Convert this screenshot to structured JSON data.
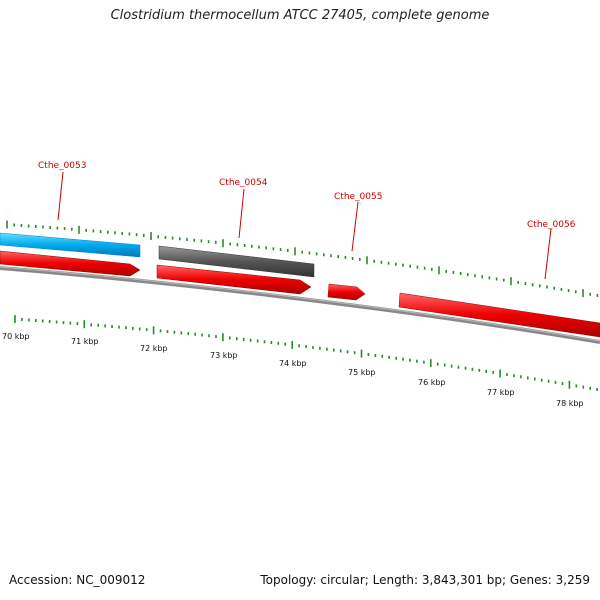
{
  "title": "Clostridium thermocellum ATCC 27405, complete genome",
  "footer": {
    "accession": "Accession: NC_009012",
    "summary": "Topology: circular; Length: 3,843,301 bp; Genes: 3,259"
  },
  "colors": {
    "forward_cds": "#00aaee",
    "reverse_cds_grey": "#555555",
    "reverse_cds_red": "#dd0000",
    "backbone": "#888888",
    "tick": "#2a8a2a",
    "locus_label": "#cc0000"
  },
  "loci": [
    {
      "name": "Cthe_0053",
      "strand": "forward",
      "color": "blue"
    },
    {
      "name": "Cthe_0054",
      "strand": "forward",
      "color": "grey"
    },
    {
      "name": "Cthe_0055",
      "strand": "reverse",
      "color": "red"
    },
    {
      "name": "Cthe_0056",
      "strand": "reverse",
      "color": "red"
    }
  ],
  "kbp_labels": [
    "70 kbp",
    "71 kbp",
    "72 kbp",
    "73 kbp",
    "74 kbp",
    "75 kbp",
    "76 kbp",
    "77 kbp",
    "78 kbp"
  ]
}
